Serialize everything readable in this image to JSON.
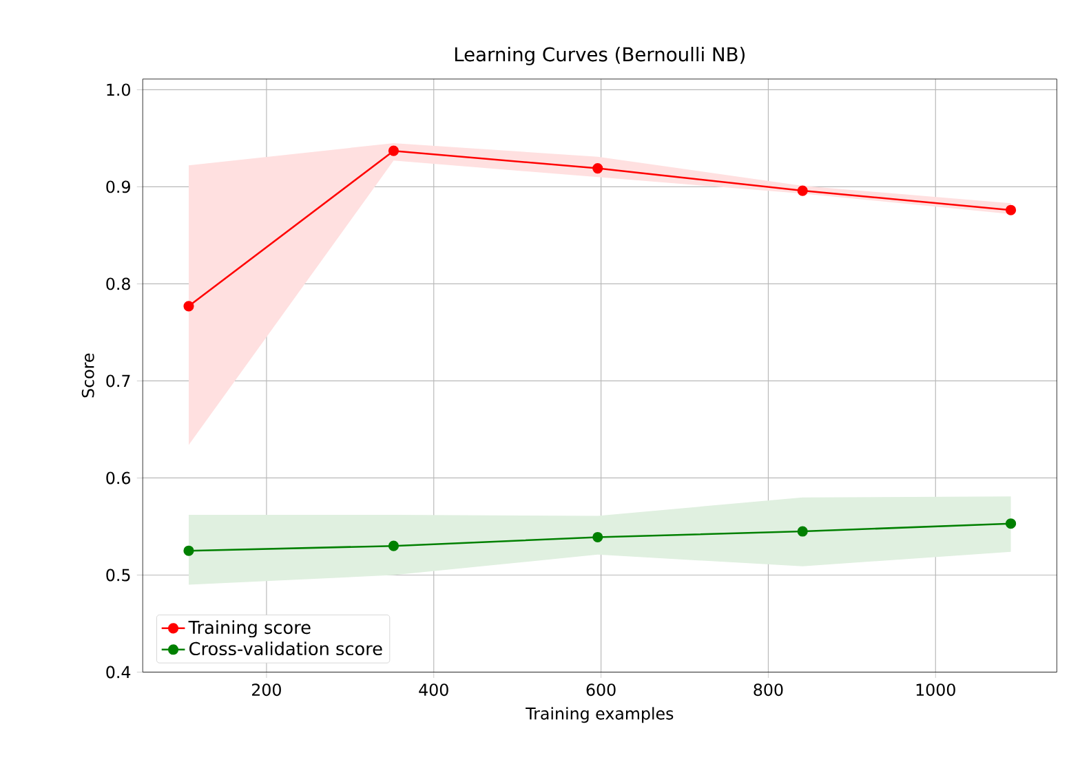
{
  "chart_data": {
    "type": "line",
    "title": "Learning Curves (Bernoulli NB)",
    "xlabel": "Training examples",
    "ylabel": "Score",
    "x": [
      107,
      352,
      596,
      841,
      1090
    ],
    "series": [
      {
        "name": "Training score",
        "color": "#ff0000",
        "values": [
          0.777,
          0.937,
          0.919,
          0.896,
          0.876
        ],
        "lower": [
          0.634,
          0.927,
          0.91,
          0.893,
          0.872
        ],
        "upper": [
          0.922,
          0.945,
          0.931,
          0.901,
          0.883
        ]
      },
      {
        "name": "Cross-validation score",
        "color": "#008000",
        "values": [
          0.525,
          0.53,
          0.539,
          0.545,
          0.553
        ],
        "lower": [
          0.49,
          0.5,
          0.521,
          0.509,
          0.524
        ],
        "upper": [
          0.562,
          0.562,
          0.561,
          0.58,
          0.581
        ]
      }
    ],
    "xlim": [
      52,
      1145
    ],
    "ylim": [
      0.4,
      1.011
    ],
    "xticks": [
      200,
      400,
      600,
      800,
      1000
    ],
    "yticks": [
      {
        "value": 0.4,
        "label": "0.4"
      },
      {
        "value": 0.5,
        "label": "0.5"
      },
      {
        "value": 0.6,
        "label": "0.6"
      },
      {
        "value": 0.7,
        "label": "0.7"
      },
      {
        "value": 0.8,
        "label": "0.8"
      },
      {
        "value": 0.9,
        "label": "0.9"
      },
      {
        "value": 1.0,
        "label": "1.0"
      }
    ],
    "grid": true,
    "legend": "bottom left",
    "marker": "circle",
    "line_style": "solid"
  }
}
